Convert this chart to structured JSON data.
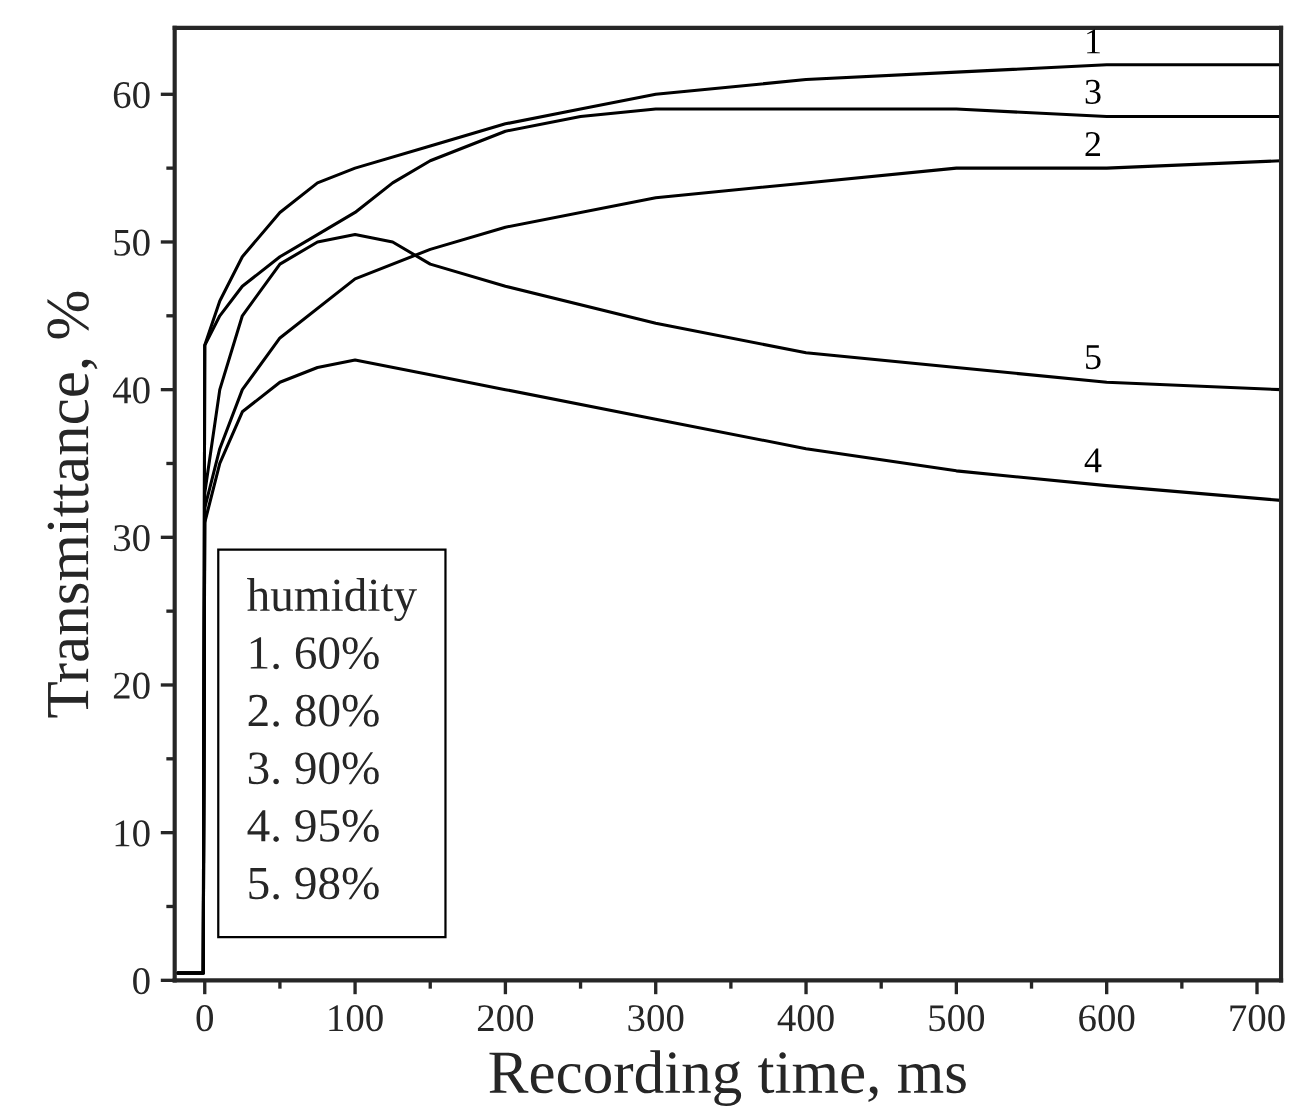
{
  "chart_data": {
    "type": "line",
    "xlabel": "Recording time, ms",
    "ylabel": "Transmittance, %",
    "xlim": [
      -20,
      716
    ],
    "ylim": [
      0,
      64.5
    ],
    "xticks": [
      0,
      100,
      200,
      300,
      400,
      500,
      600,
      700
    ],
    "yticks": [
      0,
      10,
      20,
      30,
      40,
      50,
      60
    ],
    "grid": false,
    "legend": false,
    "marker": "none",
    "line_style": "solid",
    "annotations": [
      "humidity\n1. 60%\n2. 80%\n3. 90%\n4. 95%\n5. 98%"
    ],
    "series": [
      {
        "name": "1",
        "color": "#000000",
        "x": [
          -18,
          -1,
          0,
          10,
          25,
          50,
          75,
          100,
          150,
          200,
          250,
          300,
          400,
          500,
          600,
          716
        ],
        "values": [
          0.5,
          0.5,
          43,
          46,
          49,
          52,
          54,
          55,
          56.5,
          58,
          59,
          60,
          61,
          61.5,
          62,
          62
        ]
      },
      {
        "name": "2",
        "color": "#000000",
        "x": [
          -18,
          -1,
          0,
          10,
          25,
          50,
          100,
          150,
          200,
          300,
          400,
          500,
          600,
          716
        ],
        "values": [
          0.5,
          0.5,
          32,
          36,
          40,
          43.5,
          47.5,
          49.5,
          51,
          53,
          54,
          55,
          55,
          55.5
        ]
      },
      {
        "name": "3",
        "color": "#000000",
        "x": [
          -18,
          -1,
          0,
          10,
          25,
          50,
          75,
          100,
          125,
          150,
          200,
          250,
          300,
          400,
          500,
          600,
          716
        ],
        "values": [
          0.5,
          0.5,
          43,
          45,
          47,
          49,
          50.5,
          52,
          54,
          55.5,
          57.5,
          58.5,
          59,
          59,
          59,
          58.5,
          58.5
        ]
      },
      {
        "name": "4",
        "color": "#000000",
        "x": [
          -18,
          -1,
          0,
          10,
          25,
          50,
          75,
          100,
          150,
          200,
          300,
          400,
          500,
          600,
          716
        ],
        "values": [
          0.5,
          0.5,
          31,
          35,
          38.5,
          40.5,
          41.5,
          42,
          41,
          40,
          38,
          36,
          34.5,
          33.5,
          32.5
        ]
      },
      {
        "name": "5",
        "color": "#000000",
        "x": [
          -18,
          -1,
          0,
          10,
          25,
          50,
          75,
          100,
          125,
          150,
          200,
          300,
          400,
          500,
          600,
          716
        ],
        "values": [
          0.5,
          0.5,
          33,
          40,
          45,
          48.5,
          50,
          50.5,
          50,
          48.5,
          47,
          44.5,
          42.5,
          41.5,
          40.5,
          40
        ]
      }
    ]
  }
}
